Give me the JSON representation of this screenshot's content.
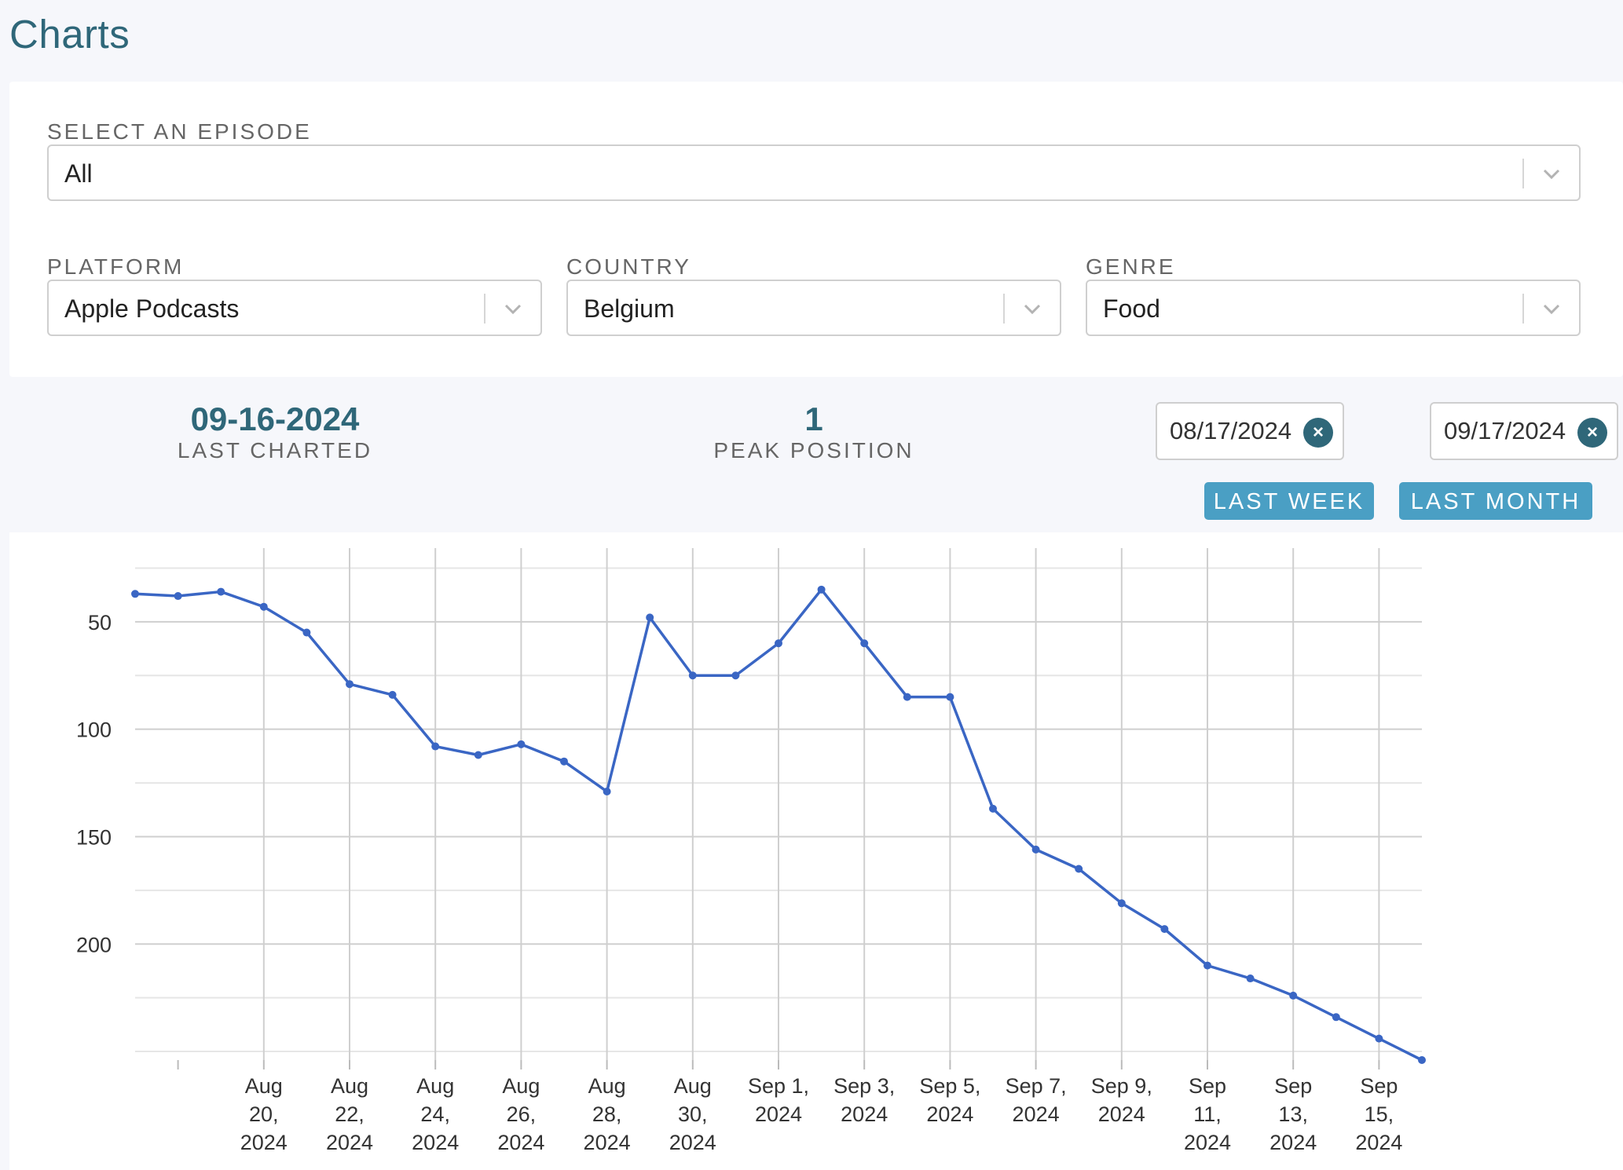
{
  "page": {
    "title": "Charts"
  },
  "filters": {
    "episode": {
      "label": "SELECT AN EPISODE",
      "value": "All"
    },
    "platform": {
      "label": "PLATFORM",
      "value": "Apple Podcasts"
    },
    "country": {
      "label": "COUNTRY",
      "value": "Belgium"
    },
    "genre": {
      "label": "GENRE",
      "value": "Food"
    }
  },
  "stats": {
    "last_charted": {
      "value": "09-16-2024",
      "label": "LAST CHARTED"
    },
    "peak_position": {
      "value": "1",
      "label": "PEAK POSITION"
    }
  },
  "date_range": {
    "start": "08/17/2024",
    "end": "09/17/2024",
    "clear_glyph": "×",
    "last_week_label": "LAST WEEK",
    "last_month_label": "LAST MONTH"
  },
  "icons": {
    "select_chevron": "chevron-down-icon",
    "clear": "close-icon"
  },
  "colors": {
    "accent": "#2f6779",
    "button": "#4a9fc4",
    "line": "#3a66c4"
  },
  "chart_data": {
    "type": "line",
    "y_reversed": true,
    "ylim": [
      254,
      23
    ],
    "y_ticks": [
      50,
      100,
      150,
      200
    ],
    "grid": true,
    "x_range": [
      "2024-08-17",
      "2024-09-16"
    ],
    "x_tick_labels": [
      {
        "date": "2024-08-20",
        "lines": [
          "Aug",
          "20,",
          "2024"
        ]
      },
      {
        "date": "2024-08-22",
        "lines": [
          "Aug",
          "22,",
          "2024"
        ]
      },
      {
        "date": "2024-08-24",
        "lines": [
          "Aug",
          "24,",
          "2024"
        ]
      },
      {
        "date": "2024-08-26",
        "lines": [
          "Aug",
          "26,",
          "2024"
        ]
      },
      {
        "date": "2024-08-28",
        "lines": [
          "Aug",
          "28,",
          "2024"
        ]
      },
      {
        "date": "2024-08-30",
        "lines": [
          "Aug",
          "30,",
          "2024"
        ]
      },
      {
        "date": "2024-09-01",
        "lines": [
          "Sep 1,",
          "2024"
        ]
      },
      {
        "date": "2024-09-03",
        "lines": [
          "Sep 3,",
          "2024"
        ]
      },
      {
        "date": "2024-09-05",
        "lines": [
          "Sep 5,",
          "2024"
        ]
      },
      {
        "date": "2024-09-07",
        "lines": [
          "Sep 7,",
          "2024"
        ]
      },
      {
        "date": "2024-09-09",
        "lines": [
          "Sep 9,",
          "2024"
        ]
      },
      {
        "date": "2024-09-11",
        "lines": [
          "Sep",
          "11,",
          "2024"
        ]
      },
      {
        "date": "2024-09-13",
        "lines": [
          "Sep",
          "13,",
          "2024"
        ]
      },
      {
        "date": "2024-09-15",
        "lines": [
          "Sep",
          "15,",
          "2024"
        ]
      }
    ],
    "series": [
      {
        "points": [
          {
            "date": "2024-08-17",
            "rank": 37
          },
          {
            "date": "2024-08-18",
            "rank": 38
          },
          {
            "date": "2024-08-19",
            "rank": 36
          },
          {
            "date": "2024-08-20",
            "rank": 43
          },
          {
            "date": "2024-08-21",
            "rank": 55
          },
          {
            "date": "2024-08-22",
            "rank": 79
          },
          {
            "date": "2024-08-23",
            "rank": 84
          },
          {
            "date": "2024-08-24",
            "rank": 108
          },
          {
            "date": "2024-08-25",
            "rank": 112
          },
          {
            "date": "2024-08-26",
            "rank": 107
          },
          {
            "date": "2024-08-27",
            "rank": 115
          },
          {
            "date": "2024-08-28",
            "rank": 129
          },
          {
            "date": "2024-08-29",
            "rank": 48
          },
          {
            "date": "2024-08-30",
            "rank": 75
          },
          {
            "date": "2024-08-31",
            "rank": 75
          },
          {
            "date": "2024-09-01",
            "rank": 60
          },
          {
            "date": "2024-09-02",
            "rank": 35
          },
          {
            "date": "2024-09-03",
            "rank": 60
          },
          {
            "date": "2024-09-04",
            "rank": 85
          },
          {
            "date": "2024-09-05",
            "rank": 85
          },
          {
            "date": "2024-09-06",
            "rank": 137
          },
          {
            "date": "2024-09-07",
            "rank": 156
          },
          {
            "date": "2024-09-08",
            "rank": 165
          },
          {
            "date": "2024-09-09",
            "rank": 181
          },
          {
            "date": "2024-09-10",
            "rank": 193
          },
          {
            "date": "2024-09-11",
            "rank": 210
          },
          {
            "date": "2024-09-12",
            "rank": 216
          },
          {
            "date": "2024-09-13",
            "rank": 224
          },
          {
            "date": "2024-09-14",
            "rank": 234
          },
          {
            "date": "2024-09-15",
            "rank": 244
          }
        ]
      }
    ]
  }
}
